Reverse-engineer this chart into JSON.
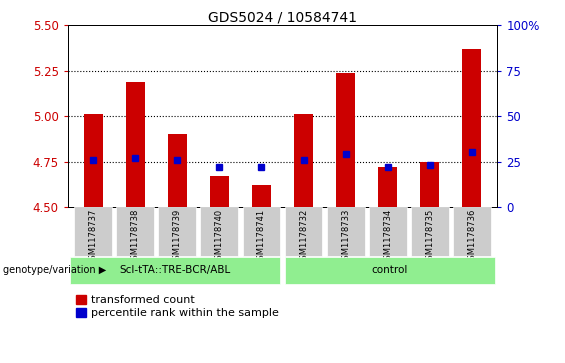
{
  "title": "GDS5024 / 10584741",
  "samples": [
    "GSM1178737",
    "GSM1178738",
    "GSM1178739",
    "GSM1178740",
    "GSM1178741",
    "GSM1178732",
    "GSM1178733",
    "GSM1178734",
    "GSM1178735",
    "GSM1178736"
  ],
  "transformed_count": [
    5.01,
    5.19,
    4.9,
    4.67,
    4.62,
    5.01,
    5.24,
    4.72,
    4.75,
    5.37
  ],
  "percentile_rank": [
    26,
    27,
    26,
    22,
    22,
    26,
    29,
    22,
    23,
    30
  ],
  "ylim_left": [
    4.5,
    5.5
  ],
  "ylim_right": [
    0,
    100
  ],
  "yticks_left": [
    4.5,
    4.75,
    5.0,
    5.25,
    5.5
  ],
  "yticks_right": [
    0,
    25,
    50,
    75,
    100
  ],
  "bar_color_red": "#CC0000",
  "bar_color_blue": "#0000CC",
  "bar_width": 0.45,
  "marker_size": 5,
  "left_tick_color": "#CC0000",
  "right_tick_color": "#0000CC",
  "group1_label": "ScI-tTA::TRE-BCR/ABL",
  "group2_label": "control",
  "group_color": "#90EE90",
  "genotype_label": "genotype/variation",
  "legend_red": "transformed count",
  "legend_blue": "percentile rank within the sample",
  "n_group1": 5,
  "n_group2": 5,
  "tick_bg_color": "#CCCCCC"
}
